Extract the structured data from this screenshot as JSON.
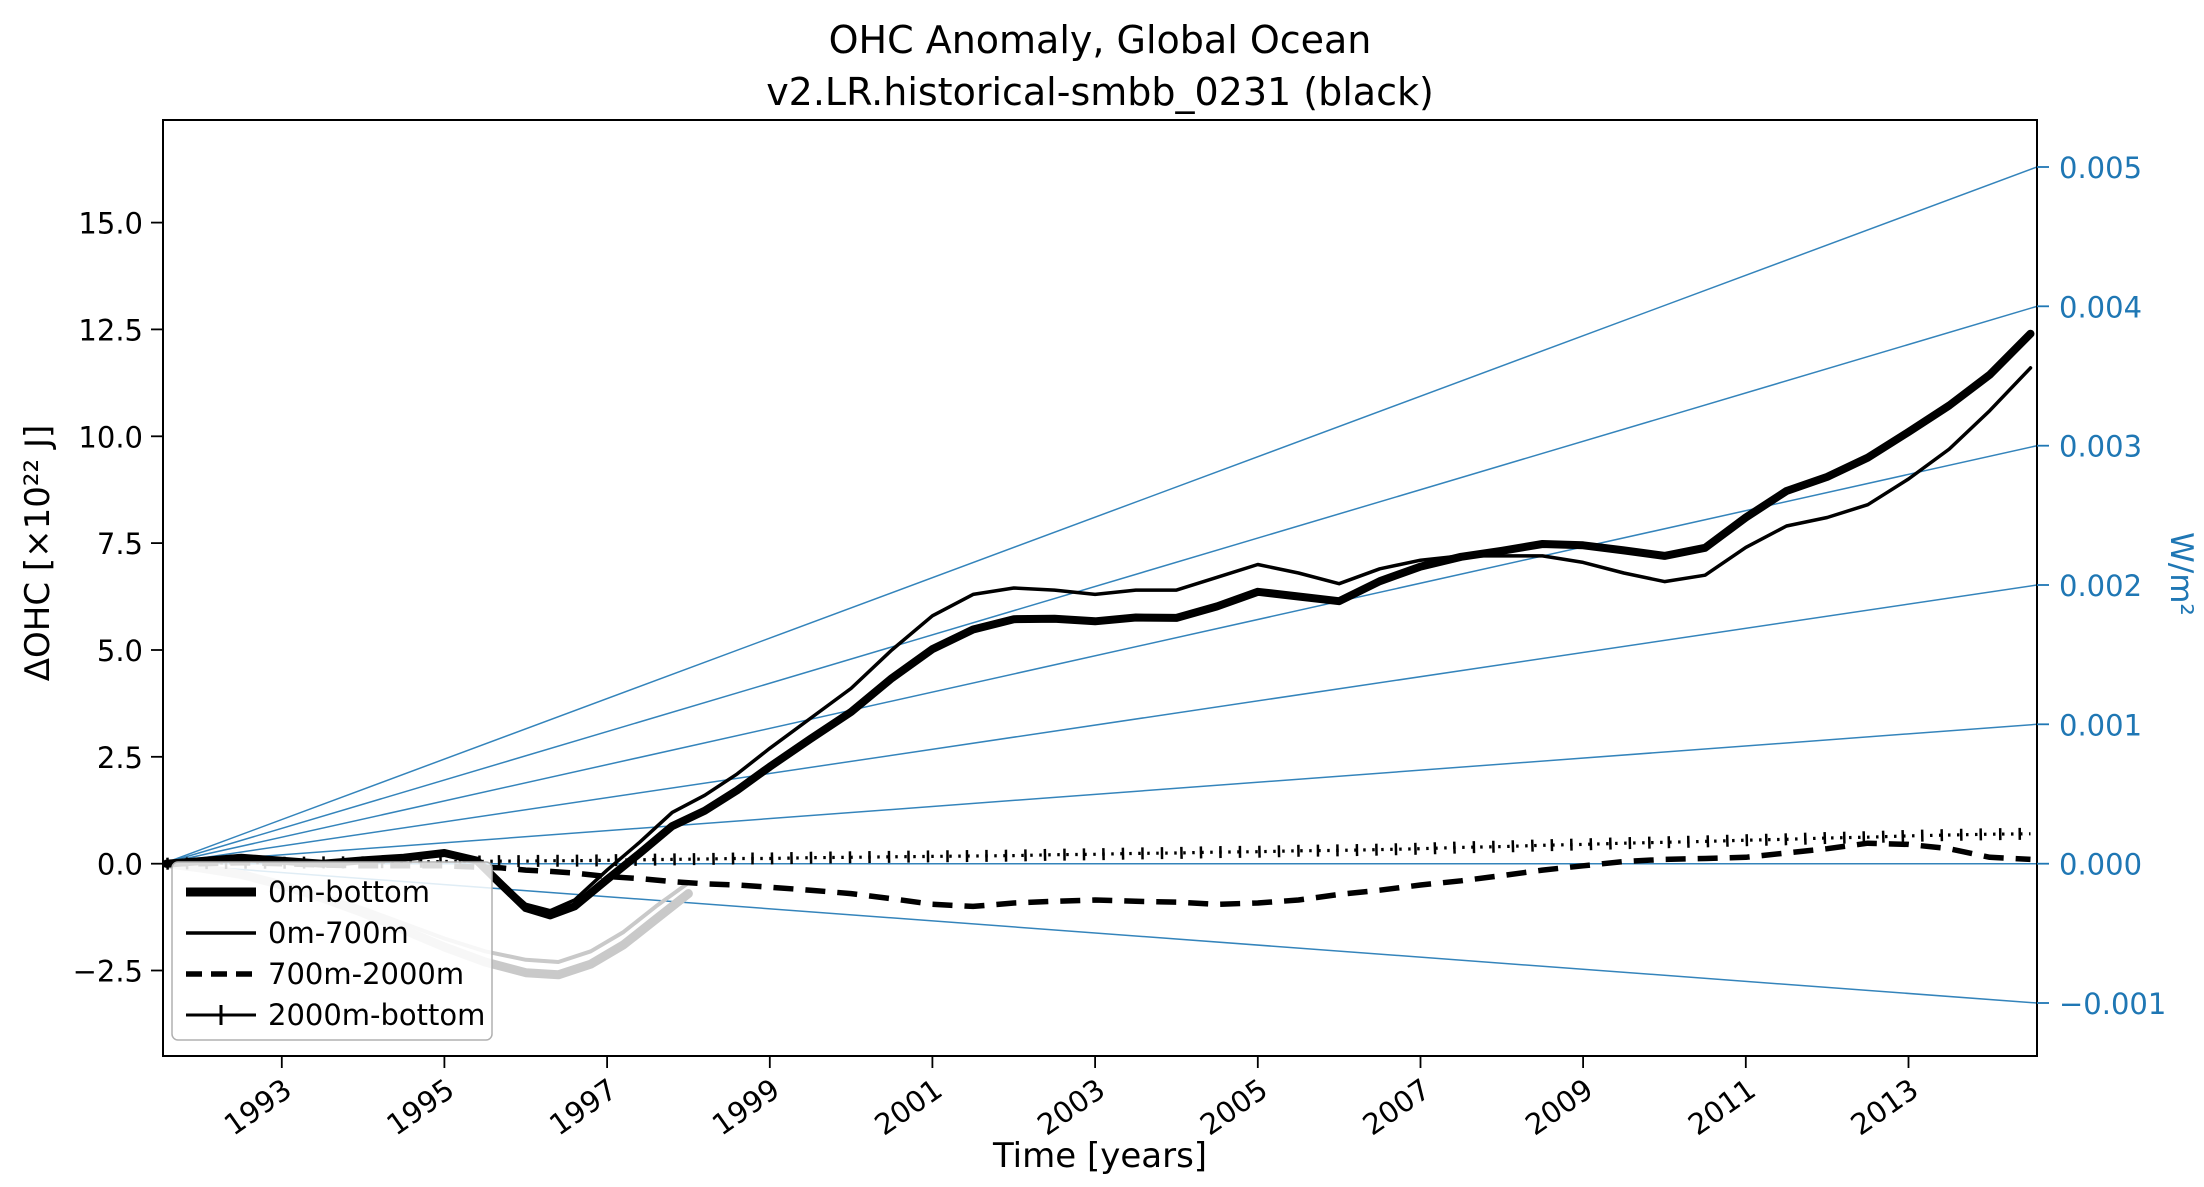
{
  "chart_data": {
    "type": "line",
    "title": "OHC Anomaly, Global Ocean",
    "subtitle": "v2.LR.historical-smbb_0231 (black)",
    "xlabel": "Time [years]",
    "ylabel_left": "ΔOHC [×10²² J]",
    "ylabel_right": "W/m²",
    "grid": false,
    "legend_position": "lower left",
    "xlim": [
      1991.54,
      2014.58
    ],
    "ylim_left": [
      -4.5,
      17.4
    ],
    "x_ticks": [
      1993,
      1995,
      1997,
      1999,
      2001,
      2003,
      2005,
      2007,
      2009,
      2011,
      2013
    ],
    "x_tick_labels": [
      "1993",
      "1995",
      "1997",
      "1999",
      "2001",
      "2003",
      "2005",
      "2007",
      "2009",
      "2011",
      "2013"
    ],
    "y_ticks_left": [
      -2.5,
      0.0,
      2.5,
      5.0,
      7.5,
      10.0,
      12.5,
      15.0
    ],
    "y_tick_labels_left": [
      "−2.5",
      "0.0",
      "2.5",
      "5.0",
      "7.5",
      "10.0",
      "12.5",
      "15.0"
    ],
    "right_axis": {
      "color": "#1f77b4",
      "tick_values_wm2": [
        0.005,
        0.004,
        0.003,
        0.002,
        0.001,
        0.0,
        -0.001
      ],
      "tick_labels": [
        "0.005",
        "0.004",
        "0.003",
        "0.002",
        "0.001",
        "0.000",
        "−0.001"
      ],
      "left_units_per_wm2": 3260,
      "fan_origin": [
        1991.54,
        0.0
      ]
    },
    "legend": {
      "items": [
        {
          "label": "0m-bottom",
          "style": "thick-solid"
        },
        {
          "label": "0m-700m",
          "style": "thin-solid"
        },
        {
          "label": "700m-2000m",
          "style": "dashed"
        },
        {
          "label": "2000m-bottom",
          "style": "plus-dotted"
        }
      ]
    },
    "x_main": [
      1991.58,
      1992.0,
      1992.5,
      1993.0,
      1993.5,
      1994.0,
      1994.5,
      1995.0,
      1995.4,
      1995.7,
      1996.0,
      1996.3,
      1996.6,
      1997.0,
      1997.4,
      1997.8,
      1998.2,
      1998.6,
      1999.0,
      1999.5,
      2000.0,
      2000.5,
      2001.0,
      2001.5,
      2002.0,
      2002.5,
      2003.0,
      2003.5,
      2004.0,
      2004.5,
      2005.0,
      2005.5,
      2006.0,
      2006.5,
      2007.0,
      2007.5,
      2008.0,
      2008.5,
      2009.0,
      2009.5,
      2010.0,
      2010.5,
      2011.0,
      2011.5,
      2012.0,
      2012.5,
      2013.0,
      2013.5,
      2014.0,
      2014.5
    ],
    "series": [
      {
        "name": "gray-line-2",
        "style": "gray-thin",
        "color": "#c9c9c9",
        "in_legend": false,
        "x": [
          1991.58,
          1992.0,
          1992.5,
          1993.0,
          1993.5,
          1994.0,
          1994.5,
          1995.0,
          1995.5,
          1996.0,
          1996.4,
          1996.8,
          1997.2,
          1997.6,
          1998.0
        ],
        "y": [
          0.0,
          -0.05,
          -0.2,
          -0.45,
          -0.75,
          -1.05,
          -1.4,
          -1.75,
          -2.05,
          -2.25,
          -2.3,
          -2.05,
          -1.6,
          -1.0,
          -0.45
        ]
      },
      {
        "name": "gray-line-1",
        "style": "gray-thick",
        "color": "#c9c9c9",
        "in_legend": false,
        "x": [
          1991.58,
          1992.0,
          1992.5,
          1993.0,
          1993.5,
          1994.0,
          1994.5,
          1995.0,
          1995.5,
          1996.0,
          1996.4,
          1996.8,
          1997.2,
          1997.6,
          1998.0
        ],
        "y": [
          0.0,
          -0.1,
          -0.25,
          -0.5,
          -0.8,
          -1.15,
          -1.55,
          -1.95,
          -2.3,
          -2.55,
          -2.6,
          -2.35,
          -1.9,
          -1.3,
          -0.7
        ]
      },
      {
        "name": "2000m-bottom",
        "style": "plus-dotted",
        "color": "#000000",
        "in_legend": true,
        "x": "x_main",
        "y": [
          0.0,
          0.01,
          0.02,
          0.02,
          0.03,
          0.03,
          0.04,
          0.05,
          0.05,
          0.06,
          0.06,
          0.07,
          0.07,
          0.08,
          0.09,
          0.1,
          0.11,
          0.12,
          0.12,
          0.14,
          0.15,
          0.16,
          0.17,
          0.18,
          0.19,
          0.21,
          0.22,
          0.24,
          0.25,
          0.27,
          0.28,
          0.3,
          0.31,
          0.33,
          0.35,
          0.38,
          0.4,
          0.43,
          0.45,
          0.48,
          0.5,
          0.52,
          0.55,
          0.57,
          0.6,
          0.62,
          0.65,
          0.67,
          0.69,
          0.7
        ]
      },
      {
        "name": "700m-2000m",
        "style": "dashed",
        "color": "#000000",
        "in_legend": true,
        "x": "x_main",
        "y": [
          0.0,
          0.0,
          0.02,
          0.0,
          -0.03,
          -0.05,
          -0.05,
          -0.05,
          -0.08,
          -0.1,
          -0.15,
          -0.18,
          -0.22,
          -0.3,
          -0.35,
          -0.42,
          -0.47,
          -0.5,
          -0.55,
          -0.62,
          -0.7,
          -0.82,
          -0.95,
          -1.0,
          -0.92,
          -0.88,
          -0.85,
          -0.88,
          -0.9,
          -0.95,
          -0.92,
          -0.85,
          -0.72,
          -0.62,
          -0.5,
          -0.4,
          -0.28,
          -0.15,
          -0.05,
          0.05,
          0.1,
          0.12,
          0.15,
          0.25,
          0.35,
          0.48,
          0.45,
          0.35,
          0.15,
          0.1
        ]
      },
      {
        "name": "0m-700m",
        "style": "thin-solid",
        "color": "#000000",
        "in_legend": true,
        "x": "x_main",
        "y": [
          0.0,
          0.05,
          0.1,
          0.05,
          0.0,
          0.1,
          0.15,
          0.25,
          0.1,
          -0.45,
          -0.95,
          -1.1,
          -0.85,
          -0.15,
          0.5,
          1.2,
          1.6,
          2.1,
          2.7,
          3.4,
          4.1,
          5.0,
          5.8,
          6.3,
          6.45,
          6.4,
          6.3,
          6.4,
          6.4,
          6.7,
          7.0,
          6.8,
          6.55,
          6.9,
          7.1,
          7.2,
          7.2,
          7.2,
          7.05,
          6.8,
          6.6,
          6.75,
          7.4,
          7.9,
          8.1,
          8.4,
          9.0,
          9.7,
          10.6,
          11.6
        ]
      },
      {
        "name": "0m-bottom",
        "style": "thick-solid",
        "color": "#000000",
        "in_legend": true,
        "x": "x_main",
        "y": [
          0.0,
          0.06,
          0.14,
          0.07,
          0.0,
          0.08,
          0.14,
          0.25,
          0.07,
          -0.49,
          -1.04,
          -1.21,
          -1.0,
          -0.37,
          0.24,
          0.88,
          1.24,
          1.72,
          2.27,
          2.92,
          3.55,
          4.34,
          5.02,
          5.48,
          5.72,
          5.73,
          5.67,
          5.76,
          5.75,
          6.02,
          6.36,
          6.25,
          6.14,
          6.61,
          6.95,
          7.18,
          7.32,
          7.48,
          7.45,
          7.33,
          7.2,
          7.39,
          8.1,
          8.72,
          9.05,
          9.5,
          10.1,
          10.72,
          11.44,
          12.4
        ]
      }
    ]
  }
}
